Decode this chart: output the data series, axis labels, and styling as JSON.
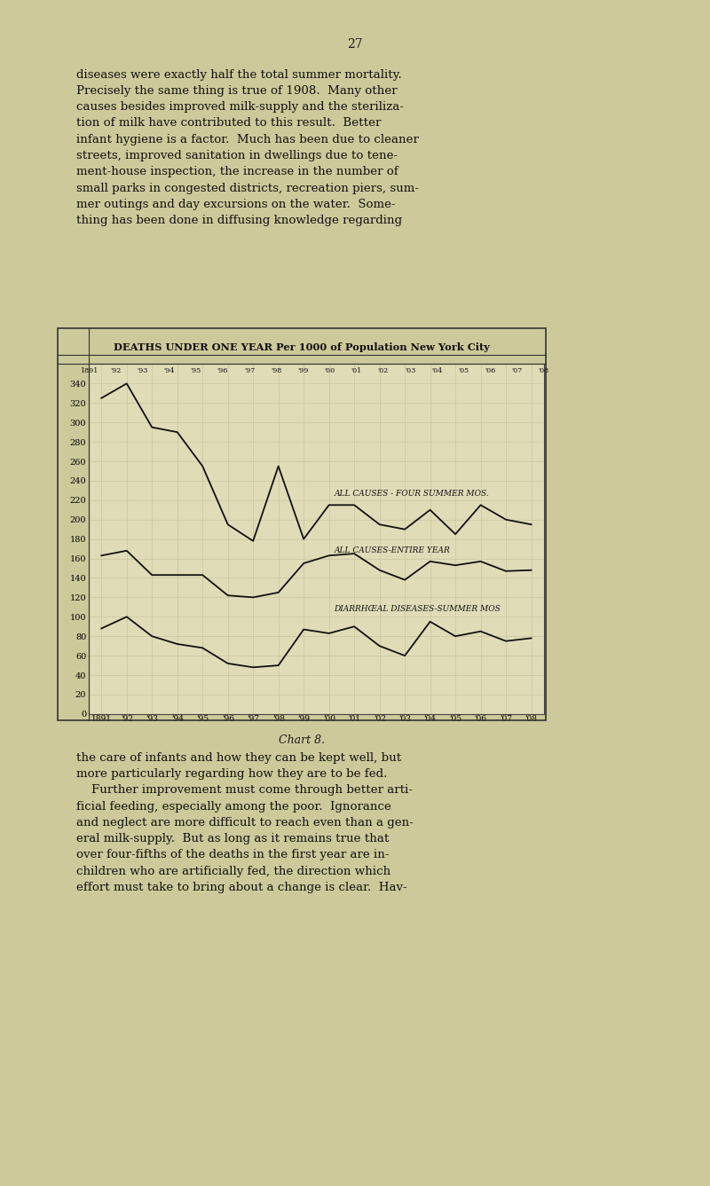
{
  "title": "DEATHS UNDER ONE YEAR Per 1000 of Population New York City",
  "years": [
    "1891",
    "'92",
    "'93",
    "'94",
    "'95",
    "'96",
    "'97",
    "'98",
    "'99",
    "'00",
    "'01",
    "'02",
    "'03",
    "'04",
    "'05",
    "'06",
    "'07",
    "'08"
  ],
  "all_summer": [
    325,
    340,
    295,
    290,
    255,
    195,
    178,
    255,
    180,
    215,
    215,
    195,
    190,
    210,
    185,
    215,
    200,
    195
  ],
  "all_year": [
    163,
    168,
    143,
    143,
    143,
    122,
    120,
    125,
    155,
    163,
    165,
    148,
    138,
    157,
    153,
    157,
    147,
    148
  ],
  "diarrhoeal": [
    88,
    100,
    80,
    72,
    68,
    52,
    48,
    50,
    87,
    83,
    90,
    70,
    60,
    95,
    80,
    85,
    75,
    78
  ],
  "ylim": [
    0,
    360
  ],
  "yticks": [
    0,
    20,
    40,
    60,
    80,
    100,
    120,
    140,
    160,
    180,
    200,
    220,
    240,
    260,
    280,
    300,
    320,
    340
  ],
  "bg_color": "#e0dcb8",
  "grid_color": "#c8c4a0",
  "line_color": "#111111",
  "page_bg": "#cec99a",
  "label_summer": "ALL CAUSES - FOUR SUMMER MOS.",
  "label_year": "ALL CAUSES-ENTIRE YEAR",
  "label_diarrhoeal": "DIARRHŒAL DISEASES-SUMMER MOS",
  "chart_label": "Chart 8.",
  "page_num": "27",
  "top_text": "diseases were exactly half the total summer mortality.\nPrecisely the same thing is true of 1908.  Many other\ncauses besides improved milk-supply and the steriliza-\ntion of milk have contributed to this result.  Better\ninfant hygiene is a factor.  Much has been due to cleaner\nstreets, improved sanitation in dwellings due to tene-\nment-house inspection, the increase in the number of\nsmall parks in congested districts, recreation piers, sum-\nmer outings and day excursions on the water.  Some-\nthing has been done in diffusing knowledge regarding",
  "bottom_text": "the care of infants and how they can be kept well, but\nmore particularly regarding how they are to be fed.\n    Further improvement must come through better arti-\nficial feeding, especially among the poor.  Ignorance\nand neglect are more difficult to reach even than a gen-\neral milk-supply.  But as long as it remains true that\nover four-fifths of the deaths in the first year are in-\nchildren who are artificially fed, the direction which\neffort must take to bring about a change is clear.  Hav-"
}
